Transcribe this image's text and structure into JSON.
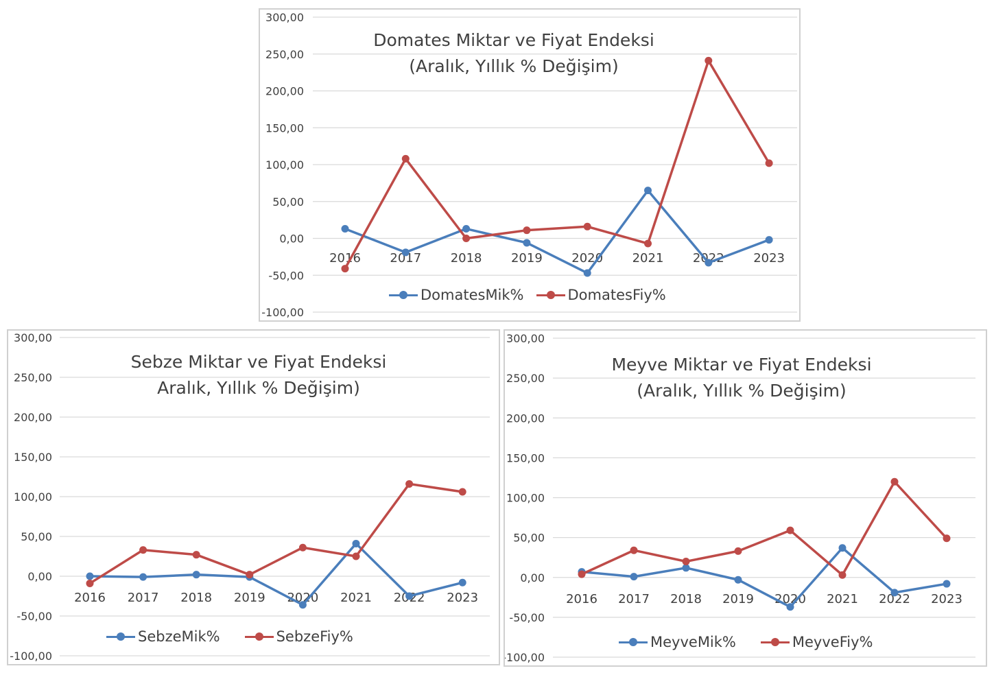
{
  "colors": {
    "quantity": "#4a7ebb",
    "price": "#be4b48",
    "grid": "#d9d9d9",
    "text": "#404040"
  },
  "chart_data": [
    {
      "id": "domates",
      "type": "line",
      "title": "Domates Miktar ve Fiyat Endeksi",
      "subtitle": "(Aralık, Yıllık % Değişim)",
      "xlabel": "",
      "ylabel": "",
      "categories": [
        "2016",
        "2017",
        "2018",
        "2019",
        "2020",
        "2021",
        "2022",
        "2023"
      ],
      "ylim": [
        -100,
        300
      ],
      "yticks": [
        "-100,00",
        "-50,00",
        "0,00",
        "50,00",
        "100,00",
        "150,00",
        "200,00",
        "250,00",
        "300,00"
      ],
      "grid": true,
      "legend": "bottom",
      "series": [
        {
          "name": "DomatesMik%",
          "color": "#4a7ebb",
          "values": [
            13,
            -19,
            13,
            -6,
            -47,
            65,
            -33,
            -2
          ]
        },
        {
          "name": "DomatesFiy%",
          "color": "#be4b48",
          "values": [
            -41,
            108,
            0,
            11,
            16,
            -7,
            241,
            102
          ]
        }
      ]
    },
    {
      "id": "sebze",
      "type": "line",
      "title": "Sebze Miktar ve Fiyat Endeksi",
      "subtitle": "Aralık, Yıllık % Değişim)",
      "xlabel": "",
      "ylabel": "",
      "categories": [
        "2016",
        "2017",
        "2018",
        "2019",
        "2020",
        "2021",
        "2022",
        "2023"
      ],
      "ylim": [
        -100,
        300
      ],
      "yticks": [
        "-100,00",
        "-50,00",
        "0,00",
        "50,00",
        "100,00",
        "150,00",
        "200,00",
        "250,00",
        "300,00"
      ],
      "grid": true,
      "legend": "bottom",
      "series": [
        {
          "name": "SebzeMik%",
          "color": "#4a7ebb",
          "values": [
            0,
            -1,
            2,
            -1,
            -36,
            41,
            -25,
            -8
          ]
        },
        {
          "name": "SebzeFiy%",
          "color": "#be4b48",
          "values": [
            -9,
            33,
            27,
            2,
            36,
            25,
            116,
            106
          ]
        }
      ]
    },
    {
      "id": "meyve",
      "type": "line",
      "title": "Meyve Miktar ve Fiyat Endeksi",
      "subtitle": "(Aralık, Yıllık % Değişim)",
      "xlabel": "",
      "ylabel": "",
      "categories": [
        "2016",
        "2017",
        "2018",
        "2019",
        "2020",
        "2021",
        "2022",
        "2023"
      ],
      "ylim": [
        -100,
        300
      ],
      "yticks": [
        "-100,00",
        "-50,00",
        "0,00",
        "50,00",
        "100,00",
        "150,00",
        "200,00",
        "250,00",
        "300,00"
      ],
      "grid": true,
      "legend": "bottom",
      "series": [
        {
          "name": "MeyveMik%",
          "color": "#4a7ebb",
          "values": [
            7,
            1,
            12,
            -3,
            -37,
            37,
            -19,
            -8
          ]
        },
        {
          "name": "MeyveFiy%",
          "color": "#be4b48",
          "values": [
            4,
            34,
            20,
            33,
            59,
            3,
            120,
            49
          ]
        }
      ]
    }
  ]
}
